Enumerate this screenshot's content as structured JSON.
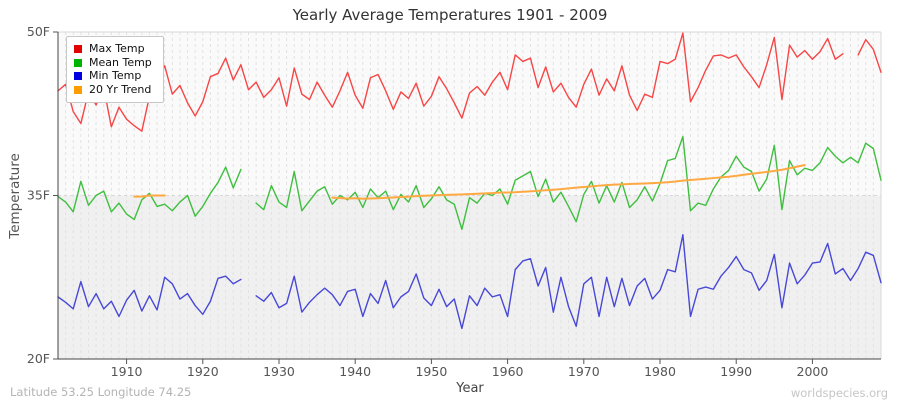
{
  "title": "Yearly Average Temperatures 1901 - 2009",
  "footer": {
    "left": "Latitude 53.25 Longitude 74.25",
    "right": "worldspecies.org"
  },
  "legend": {
    "items": [
      {
        "label": "Max Temp",
        "color": "#e00000"
      },
      {
        "label": "Mean Temp",
        "color": "#00b400"
      },
      {
        "label": "Min Temp",
        "color": "#0000e0"
      },
      {
        "label": "20 Yr Trend",
        "color": "#ff9c00"
      }
    ]
  },
  "chart_data": {
    "type": "line",
    "title": "Yearly Average Temperatures 1901 - 2009",
    "xlabel": "Year",
    "ylabel": "Temperature",
    "xlim": [
      1901,
      2009
    ],
    "ylim": [
      20,
      50
    ],
    "x_start_year": 1901,
    "x_ticks": [
      1910,
      1920,
      1930,
      1940,
      1950,
      1960,
      1970,
      1980,
      1990,
      2000
    ],
    "y_ticks": [
      {
        "label": "50F",
        "value": 50
      },
      {
        "label": "35F",
        "value": 35
      },
      {
        "label": "20F",
        "value": 20
      }
    ],
    "grid": {
      "vertical_yearly_dashed": true,
      "horizontal_dashed_at": 35,
      "legend_position": "top-left"
    },
    "bands": [
      {
        "from": 35,
        "to": 50,
        "color": "#fafafa"
      },
      {
        "from": 20,
        "to": 35,
        "color": "#f0f0f0"
      }
    ],
    "notes": "null = missing data (gap in line). Mean/Min missing 1926; Max missing 2005. Trend plotted 1911-1915 and 1937-1999.",
    "series": [
      {
        "name": "Max Temp",
        "line_color": "#f84545",
        "width": 1.4,
        "values": [
          44.6,
          45.2,
          42.7,
          41.6,
          44.5,
          43.3,
          44.9,
          41.3,
          43.1,
          42.0,
          41.4,
          40.9,
          44.1,
          45.6,
          46.9,
          44.3,
          45.1,
          43.5,
          42.3,
          43.6,
          45.9,
          46.2,
          47.6,
          45.6,
          47.0,
          44.7,
          45.4,
          44.0,
          44.7,
          45.8,
          43.2,
          46.7,
          44.3,
          43.8,
          45.4,
          44.2,
          43.1,
          44.6,
          46.3,
          44.2,
          43.0,
          45.8,
          46.1,
          44.6,
          42.9,
          44.5,
          43.9,
          45.3,
          43.2,
          44.1,
          45.9,
          44.8,
          43.5,
          42.1,
          44.4,
          45.0,
          44.2,
          45.4,
          46.3,
          44.7,
          47.9,
          47.3,
          47.6,
          44.9,
          46.8,
          44.5,
          45.3,
          44.0,
          43.1,
          45.2,
          46.6,
          44.2,
          45.7,
          44.6,
          46.9,
          44.2,
          42.8,
          44.3,
          44.0,
          47.3,
          47.1,
          47.5,
          49.9,
          43.6,
          44.9,
          46.5,
          47.8,
          47.9,
          47.6,
          47.9,
          46.8,
          45.9,
          44.9,
          47.0,
          49.5,
          43.8,
          48.8,
          47.7,
          48.3,
          47.5,
          48.2,
          49.4,
          47.5,
          48.0,
          null,
          47.9,
          49.3,
          48.4,
          46.3
        ]
      },
      {
        "name": "Mean Temp",
        "line_color": "#3fbf3f",
        "width": 1.4,
        "values": [
          34.9,
          34.4,
          33.5,
          36.3,
          34.1,
          35.0,
          35.4,
          33.5,
          34.3,
          33.3,
          32.8,
          34.6,
          35.2,
          34.0,
          34.2,
          33.6,
          34.4,
          35.0,
          33.1,
          34.0,
          35.2,
          36.2,
          37.6,
          35.7,
          37.4,
          null,
          34.3,
          33.7,
          35.9,
          34.4,
          33.9,
          37.2,
          33.6,
          34.5,
          35.4,
          35.8,
          34.2,
          35.0,
          34.6,
          35.3,
          33.9,
          35.6,
          34.8,
          35.4,
          33.7,
          35.1,
          34.4,
          35.9,
          33.9,
          34.7,
          35.8,
          34.6,
          34.2,
          31.9,
          34.8,
          34.3,
          35.2,
          35.0,
          35.6,
          34.2,
          36.4,
          36.8,
          37.2,
          34.9,
          36.5,
          34.4,
          35.3,
          34.0,
          32.6,
          35.1,
          36.3,
          34.3,
          35.9,
          34.4,
          36.2,
          33.9,
          34.6,
          35.8,
          34.5,
          36.1,
          38.2,
          38.4,
          40.4,
          33.6,
          34.3,
          34.1,
          35.6,
          36.7,
          37.3,
          38.6,
          37.6,
          37.2,
          35.4,
          36.5,
          39.6,
          33.7,
          38.2,
          36.9,
          37.5,
          37.3,
          38.0,
          39.4,
          38.6,
          38.0,
          38.5,
          38.0,
          39.8,
          39.3,
          36.4
        ]
      },
      {
        "name": "Min Temp",
        "line_color": "#4848d8",
        "width": 1.4,
        "values": [
          25.7,
          25.2,
          24.6,
          27.1,
          24.8,
          26.0,
          24.6,
          25.3,
          23.9,
          25.4,
          26.3,
          24.4,
          25.8,
          24.5,
          27.5,
          26.9,
          25.5,
          26.0,
          24.9,
          24.1,
          25.3,
          27.4,
          27.6,
          26.9,
          27.3,
          null,
          25.8,
          25.3,
          26.1,
          24.7,
          25.1,
          27.6,
          24.3,
          25.2,
          25.9,
          26.5,
          25.9,
          24.9,
          26.2,
          26.4,
          23.9,
          26.0,
          25.1,
          27.2,
          24.7,
          25.7,
          26.2,
          27.8,
          25.6,
          24.9,
          26.4,
          24.8,
          25.5,
          22.8,
          25.8,
          24.9,
          26.5,
          25.7,
          25.9,
          23.9,
          28.2,
          29.0,
          29.2,
          26.7,
          28.4,
          24.3,
          27.5,
          24.8,
          23.0,
          26.9,
          27.5,
          23.9,
          27.5,
          24.8,
          27.4,
          24.9,
          26.7,
          27.4,
          25.5,
          26.3,
          28.2,
          28.0,
          31.4,
          23.9,
          26.4,
          26.6,
          26.4,
          27.6,
          28.4,
          29.4,
          28.2,
          27.9,
          26.3,
          27.2,
          29.6,
          24.7,
          28.8,
          26.9,
          27.7,
          28.8,
          28.9,
          30.6,
          27.8,
          28.3,
          27.2,
          28.3,
          29.8,
          29.5,
          27.0
        ]
      },
      {
        "name": "20 Yr Trend",
        "line_color": "#ffa942",
        "width": 2,
        "values": [
          null,
          null,
          null,
          null,
          null,
          null,
          null,
          null,
          null,
          null,
          34.9,
          34.9,
          35.0,
          35.0,
          35.0,
          null,
          null,
          null,
          null,
          null,
          null,
          null,
          null,
          null,
          null,
          null,
          null,
          null,
          null,
          null,
          null,
          null,
          null,
          null,
          null,
          null,
          34.8,
          34.76,
          34.72,
          34.75,
          34.7,
          34.72,
          34.75,
          34.78,
          34.82,
          34.86,
          34.9,
          34.94,
          34.98,
          35.0,
          35.03,
          35.06,
          35.08,
          35.1,
          35.13,
          35.16,
          35.19,
          35.22,
          35.26,
          35.28,
          35.3,
          35.34,
          35.38,
          35.43,
          35.48,
          35.53,
          35.58,
          35.65,
          35.72,
          35.78,
          35.84,
          35.9,
          35.95,
          36.0,
          36.02,
          36.05,
          36.08,
          36.1,
          36.13,
          36.17,
          36.22,
          36.28,
          36.36,
          36.42,
          36.48,
          36.54,
          36.6,
          36.66,
          36.72,
          36.8,
          36.9,
          37.0,
          37.08,
          37.16,
          37.26,
          37.36,
          37.5,
          37.65,
          37.8,
          null,
          null,
          null,
          null,
          null,
          null,
          null,
          null,
          null,
          null
        ]
      }
    ]
  }
}
